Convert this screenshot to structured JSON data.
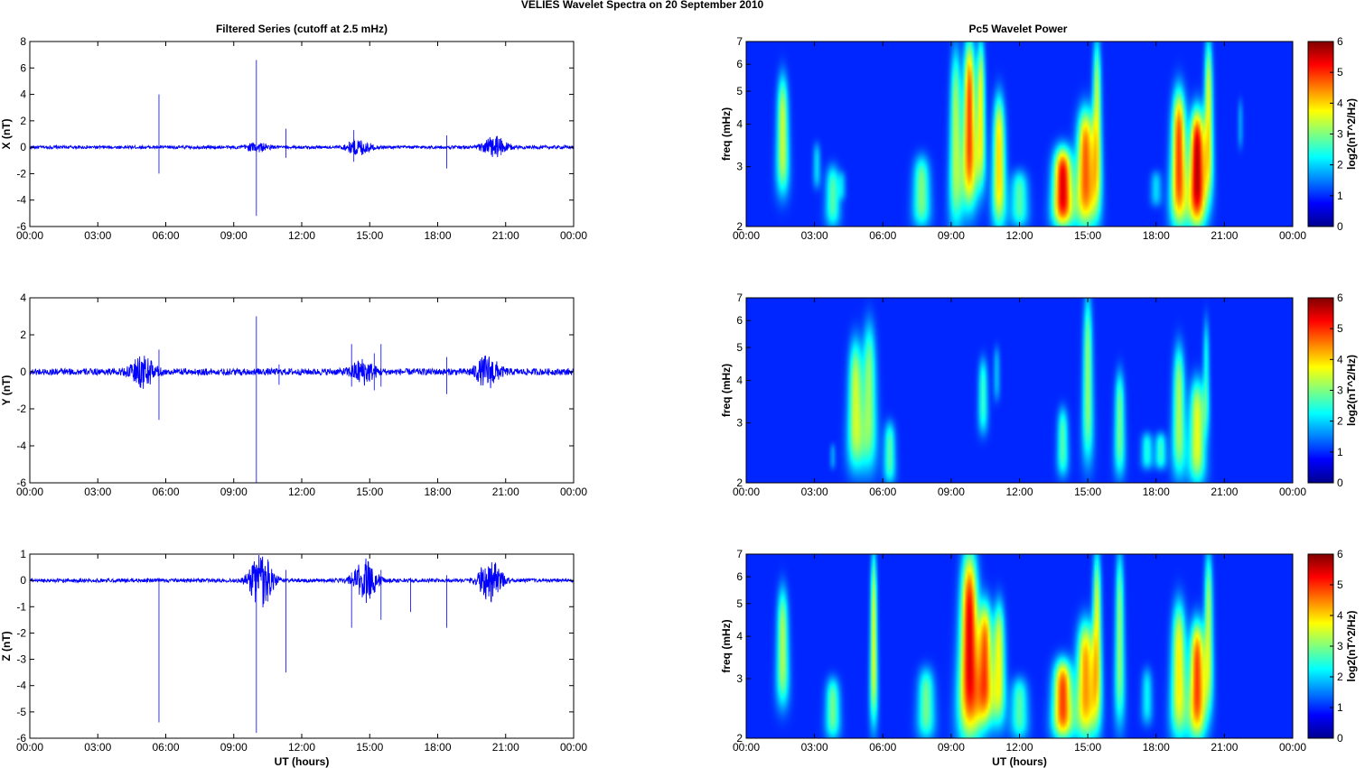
{
  "figure": {
    "suptitle": "VELIES Wavelet Spectra on 20 September 2010",
    "left_title": "Filtered Series (cutoff at 2.5 mHz)",
    "right_title": "Pc5 Wavelet Power"
  },
  "chart_data": [
    {
      "type": "line",
      "panel": "X",
      "title": "Filtered Series (cutoff at 2.5 mHz)",
      "xlabel": "",
      "ylabel": "X (nT)",
      "xlim": [
        0,
        24
      ],
      "ylim": [
        -6,
        8
      ],
      "yticks": [
        -6,
        -4,
        -2,
        0,
        2,
        4,
        6,
        8
      ],
      "xtick_labels": [
        "00:00",
        "03:00",
        "06:00",
        "09:00",
        "12:00",
        "15:00",
        "18:00",
        "21:00",
        "00:00"
      ],
      "color": "#0000ff",
      "noise_amp": 0.12,
      "bursts": [
        [
          10.0,
          0.3
        ],
        [
          14.5,
          0.6
        ],
        [
          20.5,
          0.8
        ]
      ],
      "spikes": [
        [
          5.7,
          4.0,
          -2.0
        ],
        [
          10.0,
          6.6,
          -5.2
        ],
        [
          11.3,
          1.4,
          -0.8
        ],
        [
          14.3,
          1.3,
          -1.1
        ],
        [
          18.4,
          0.9,
          -1.6
        ],
        [
          20.8,
          0.7,
          -0.6
        ]
      ]
    },
    {
      "type": "line",
      "panel": "Y",
      "title": "",
      "xlabel": "",
      "ylabel": "Y (nT)",
      "xlim": [
        0,
        24
      ],
      "ylim": [
        -6,
        4
      ],
      "yticks": [
        -6,
        -4,
        -2,
        0,
        2,
        4
      ],
      "xtick_labels": [
        "00:00",
        "03:00",
        "06:00",
        "09:00",
        "12:00",
        "15:00",
        "18:00",
        "21:00",
        "00:00"
      ],
      "color": "#0000ff",
      "noise_amp": 0.18,
      "bursts": [
        [
          5.0,
          0.8
        ],
        [
          14.7,
          0.6
        ],
        [
          20.2,
          0.8
        ]
      ],
      "spikes": [
        [
          5.7,
          1.2,
          -2.6
        ],
        [
          10.0,
          3.0,
          -6.0
        ],
        [
          11.0,
          0.4,
          -0.7
        ],
        [
          14.2,
          1.5,
          -0.8
        ],
        [
          15.2,
          1.0,
          -1.0
        ],
        [
          15.5,
          1.5,
          -0.8
        ],
        [
          18.4,
          0.8,
          -1.2
        ]
      ]
    },
    {
      "type": "line",
      "panel": "Z",
      "title": "",
      "xlabel": "UT (hours)",
      "ylabel": "Z (nT)",
      "xlim": [
        0,
        24
      ],
      "ylim": [
        -6,
        1
      ],
      "yticks": [
        -6,
        -5,
        -4,
        -3,
        -2,
        -1,
        0,
        1
      ],
      "xtick_labels": [
        "00:00",
        "03:00",
        "06:00",
        "09:00",
        "12:00",
        "15:00",
        "18:00",
        "21:00",
        "00:00"
      ],
      "color": "#0000ff",
      "noise_amp": 0.07,
      "bursts": [
        [
          10.2,
          1.0
        ],
        [
          14.8,
          0.8
        ],
        [
          20.3,
          0.8
        ]
      ],
      "spikes": [
        [
          5.7,
          0.1,
          -5.4
        ],
        [
          10.0,
          0.6,
          -5.8
        ],
        [
          10.5,
          0.8,
          -0.8
        ],
        [
          11.3,
          0.4,
          -3.5
        ],
        [
          14.2,
          0.3,
          -1.8
        ],
        [
          15.5,
          0.4,
          -1.5
        ],
        [
          16.8,
          0.1,
          -1.2
        ],
        [
          18.4,
          0.2,
          -1.8
        ]
      ]
    },
    {
      "type": "heatmap",
      "panel": "X-power",
      "title": "Pc5 Wavelet Power",
      "xlabel": "",
      "ylabel": "freq (mHz)",
      "yscale": "log",
      "xlim": [
        0,
        24
      ],
      "ylim": [
        2,
        7
      ],
      "yticks": [
        2,
        3,
        4,
        5,
        6,
        7
      ],
      "xtick_labels": [
        "00:00",
        "03:00",
        "06:00",
        "09:00",
        "12:00",
        "15:00",
        "18:00",
        "21:00",
        "00:00"
      ],
      "colorbar": {
        "label": "log2(nT^2/Hz)",
        "range": [
          0,
          6
        ],
        "ticks": [
          0,
          1,
          2,
          3,
          4,
          5,
          6
        ]
      },
      "blobs": [
        [
          1.6,
          0.25,
          2.5,
          5.5,
          2.8
        ],
        [
          3.1,
          0.15,
          2.6,
          3.5,
          1.2
        ],
        [
          3.8,
          0.25,
          2.0,
          3.0,
          2.0
        ],
        [
          4.2,
          0.15,
          2.4,
          2.9,
          0.9
        ],
        [
          7.7,
          0.3,
          2.0,
          3.2,
          2.3
        ],
        [
          9.2,
          0.25,
          2.0,
          6.5,
          2.6
        ],
        [
          9.8,
          0.28,
          2.3,
          7.0,
          4.4
        ],
        [
          10.3,
          0.2,
          2.6,
          7.0,
          3.0
        ],
        [
          11.1,
          0.25,
          2.0,
          4.8,
          3.4
        ],
        [
          12.0,
          0.3,
          2.0,
          2.9,
          2.0
        ],
        [
          13.9,
          0.35,
          2.0,
          3.4,
          5.0
        ],
        [
          14.9,
          0.35,
          2.0,
          4.4,
          4.2
        ],
        [
          15.4,
          0.2,
          2.2,
          7.0,
          2.8
        ],
        [
          18.0,
          0.2,
          2.3,
          2.9,
          1.2
        ],
        [
          19.0,
          0.3,
          2.0,
          5.0,
          4.4
        ],
        [
          19.8,
          0.3,
          2.0,
          4.4,
          5.3
        ],
        [
          20.3,
          0.2,
          2.4,
          7.0,
          3.0
        ],
        [
          21.7,
          0.12,
          3.4,
          4.7,
          0.8
        ]
      ]
    },
    {
      "type": "heatmap",
      "panel": "Y-power",
      "title": "",
      "xlabel": "",
      "ylabel": "freq (mHz)",
      "yscale": "log",
      "xlim": [
        0,
        24
      ],
      "ylim": [
        2,
        7
      ],
      "yticks": [
        2,
        3,
        4,
        5,
        6,
        7
      ],
      "xtick_labels": [
        "00:00",
        "03:00",
        "06:00",
        "09:00",
        "12:00",
        "15:00",
        "18:00",
        "21:00",
        "00:00"
      ],
      "colorbar": {
        "label": "log2(nT^2/Hz)",
        "range": [
          0,
          6
        ],
        "ticks": [
          0,
          1,
          2,
          3,
          4,
          5,
          6
        ]
      },
      "blobs": [
        [
          3.8,
          0.1,
          2.2,
          2.6,
          0.8
        ],
        [
          4.8,
          0.3,
          2.2,
          5.2,
          2.8
        ],
        [
          5.4,
          0.3,
          2.2,
          5.8,
          2.4
        ],
        [
          6.3,
          0.2,
          2.0,
          3.0,
          2.0
        ],
        [
          10.4,
          0.2,
          2.8,
          4.6,
          1.8
        ],
        [
          11.0,
          0.15,
          3.5,
          5.0,
          1.0
        ],
        [
          13.9,
          0.2,
          2.1,
          3.3,
          2.0
        ],
        [
          15.0,
          0.22,
          2.3,
          7.0,
          2.4
        ],
        [
          16.4,
          0.2,
          2.1,
          4.2,
          2.2
        ],
        [
          17.6,
          0.2,
          2.2,
          2.8,
          1.6
        ],
        [
          18.2,
          0.2,
          2.2,
          2.8,
          1.8
        ],
        [
          19.0,
          0.25,
          2.1,
          5.0,
          2.6
        ],
        [
          19.8,
          0.3,
          2.0,
          4.0,
          3.0
        ],
        [
          20.2,
          0.15,
          2.8,
          6.0,
          1.5
        ]
      ]
    },
    {
      "type": "heatmap",
      "panel": "Z-power",
      "title": "",
      "xlabel": "UT (hours)",
      "ylabel": "freq (mHz)",
      "yscale": "log",
      "xlim": [
        0,
        24
      ],
      "ylim": [
        2,
        7
      ],
      "yticks": [
        2,
        3,
        4,
        5,
        6,
        7
      ],
      "xtick_labels": [
        "00:00",
        "03:00",
        "06:00",
        "09:00",
        "12:00",
        "15:00",
        "18:00",
        "21:00",
        "00:00"
      ],
      "colorbar": {
        "label": "log2(nT^2/Hz)",
        "range": [
          0,
          6
        ],
        "ticks": [
          0,
          1,
          2,
          3,
          4,
          5,
          6
        ]
      },
      "blobs": [
        [
          1.6,
          0.25,
          2.5,
          5.5,
          2.6
        ],
        [
          3.8,
          0.25,
          2.0,
          3.0,
          2.2
        ],
        [
          5.6,
          0.15,
          2.2,
          7.0,
          3.0
        ],
        [
          7.9,
          0.3,
          2.0,
          3.2,
          2.2
        ],
        [
          9.8,
          0.4,
          2.0,
          7.0,
          5.0
        ],
        [
          10.5,
          0.3,
          2.2,
          5.0,
          4.0
        ],
        [
          11.1,
          0.25,
          2.2,
          5.0,
          3.0
        ],
        [
          12.0,
          0.3,
          2.0,
          3.0,
          2.0
        ],
        [
          13.9,
          0.35,
          2.0,
          3.4,
          4.4
        ],
        [
          14.9,
          0.35,
          2.0,
          4.4,
          3.8
        ],
        [
          15.4,
          0.2,
          2.2,
          7.0,
          3.0
        ],
        [
          16.4,
          0.2,
          2.2,
          7.0,
          2.4
        ],
        [
          17.6,
          0.2,
          2.2,
          3.2,
          1.4
        ],
        [
          19.0,
          0.3,
          2.0,
          5.0,
          3.2
        ],
        [
          19.8,
          0.3,
          2.0,
          4.4,
          4.4
        ],
        [
          20.3,
          0.2,
          2.4,
          7.0,
          2.6
        ]
      ]
    }
  ]
}
